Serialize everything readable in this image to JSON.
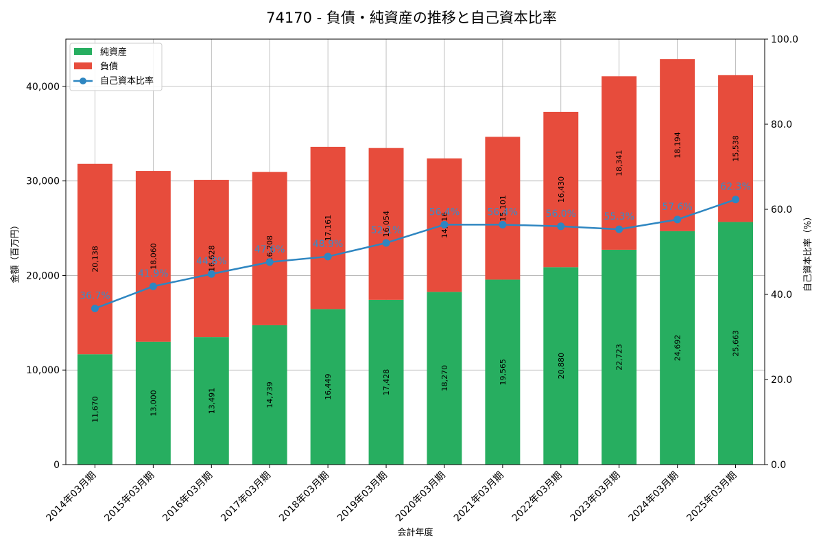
{
  "chart_data": {
    "type": "bar",
    "title": "74170 - 負債・純資産の推移と自己資本比率",
    "xlabel": "会計年度",
    "ylabel": "金額（百万円）",
    "y2label": "自己資本比率（%）",
    "ylim": [
      0,
      45000
    ],
    "y2lim": [
      0,
      100
    ],
    "y_ticks": [
      "0",
      "10,000",
      "20,000",
      "30,000",
      "40,000"
    ],
    "y_tick_values": [
      0,
      10000,
      20000,
      30000,
      40000
    ],
    "y2_ticks": [
      "0.0",
      "20.0",
      "40.0",
      "60.0",
      "80.0",
      "100.0"
    ],
    "y2_tick_values": [
      0,
      20,
      40,
      60,
      80,
      100
    ],
    "grid": true,
    "legend_position": "top-left",
    "categories": [
      "2014年03月期",
      "2015年03月期",
      "2016年03月期",
      "2017年03月期",
      "2018年03月期",
      "2019年03月期",
      "2020年03月期",
      "2021年03月期",
      "2022年03月期",
      "2023年03月期",
      "2024年03月期",
      "2025年03月期"
    ],
    "series": [
      {
        "name": "純資産",
        "kind": "bar",
        "color": "#27ae60",
        "values": [
          11670,
          13000,
          13491,
          14739,
          16449,
          17428,
          18270,
          19565,
          20880,
          22723,
          24692,
          25663
        ],
        "labels": [
          "11,670",
          "13,000",
          "13,491",
          "14,739",
          "16,449",
          "17,428",
          "18,270",
          "19,565",
          "20,880",
          "22,723",
          "24,692",
          "25,663"
        ]
      },
      {
        "name": "負債",
        "kind": "bar",
        "color": "#e74c3c",
        "values": [
          20138,
          18060,
          16628,
          16208,
          17161,
          16054,
          14116,
          15101,
          16430,
          18341,
          18194,
          15538
        ],
        "labels": [
          "20,138",
          "18,060",
          "16,628",
          "16,208",
          "17,161",
          "16,054",
          "14,116",
          "15,101",
          "16,430",
          "18,341",
          "18,194",
          "15,538"
        ]
      },
      {
        "name": "自己資本比率",
        "kind": "line",
        "axis": "right",
        "color": "#2e86c1",
        "values": [
          36.7,
          41.9,
          44.8,
          47.6,
          48.9,
          52.1,
          56.4,
          56.4,
          56.0,
          55.3,
          57.6,
          62.3
        ],
        "labels": [
          "36.7%",
          "41.9%",
          "44.8%",
          "47.6%",
          "48.9%",
          "52.1%",
          "56.4%",
          "56.4%",
          "56.0%",
          "55.3%",
          "57.6%",
          "62.3%"
        ]
      }
    ]
  }
}
